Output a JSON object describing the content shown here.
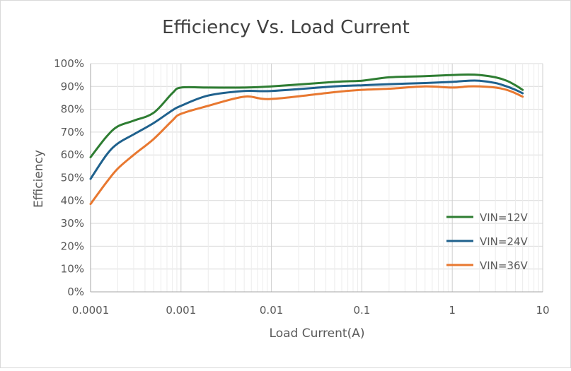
{
  "chart_data": {
    "type": "line",
    "title": "Efficiency Vs. Load Current",
    "xlabel": "Load Current(A)",
    "ylabel": "Efficiency",
    "xscale": "log",
    "xlim": [
      0.0001,
      10
    ],
    "ylim": [
      0,
      100
    ],
    "grid": true,
    "legend_position": "right",
    "x_tick_labels": [
      "0.0001",
      "0.001",
      "0.01",
      "0.1",
      "1",
      "10"
    ],
    "y_tick_labels": [
      "0%",
      "10%",
      "20%",
      "30%",
      "40%",
      "50%",
      "60%",
      "70%",
      "80%",
      "90%",
      "100%"
    ],
    "series": [
      {
        "name": "VIN=12V",
        "color": "#2e7d32",
        "x": [
          0.0001,
          0.00015,
          0.0002,
          0.0003,
          0.0005,
          0.0008,
          0.001,
          0.002,
          0.005,
          0.01,
          0.05,
          0.1,
          0.2,
          0.5,
          1,
          1.5,
          2,
          3,
          4,
          5,
          6
        ],
        "y": [
          59,
          68,
          72.5,
          75,
          78.5,
          87,
          89.5,
          89.5,
          89.5,
          90,
          92,
          92.5,
          94,
          94.5,
          95,
          95.2,
          95,
          94,
          92.5,
          90.5,
          88.5
        ]
      },
      {
        "name": "VIN=24V",
        "color": "#1f618d",
        "x": [
          0.0001,
          0.00015,
          0.0002,
          0.0003,
          0.0005,
          0.0008,
          0.001,
          0.002,
          0.005,
          0.01,
          0.05,
          0.1,
          0.2,
          0.5,
          1,
          1.5,
          2,
          3,
          4,
          5,
          6
        ],
        "y": [
          49.5,
          60,
          65,
          69,
          74,
          79.5,
          81.5,
          86,
          88,
          88,
          90,
          90.5,
          91,
          91.5,
          92,
          92.5,
          92.5,
          91.5,
          90,
          88.5,
          87
        ]
      },
      {
        "name": "VIN=36V",
        "color": "#e87830",
        "x": [
          0.0001,
          0.00015,
          0.0002,
          0.0003,
          0.0005,
          0.0008,
          0.001,
          0.002,
          0.005,
          0.01,
          0.05,
          0.1,
          0.2,
          0.5,
          1,
          1.5,
          2,
          3,
          4,
          5,
          6
        ],
        "y": [
          38.5,
          48,
          54,
          60,
          67,
          75,
          78,
          81.5,
          85.5,
          84.5,
          87.5,
          88.5,
          89,
          90,
          89.5,
          90,
          90,
          89.5,
          88.5,
          87,
          85.5
        ]
      }
    ]
  }
}
